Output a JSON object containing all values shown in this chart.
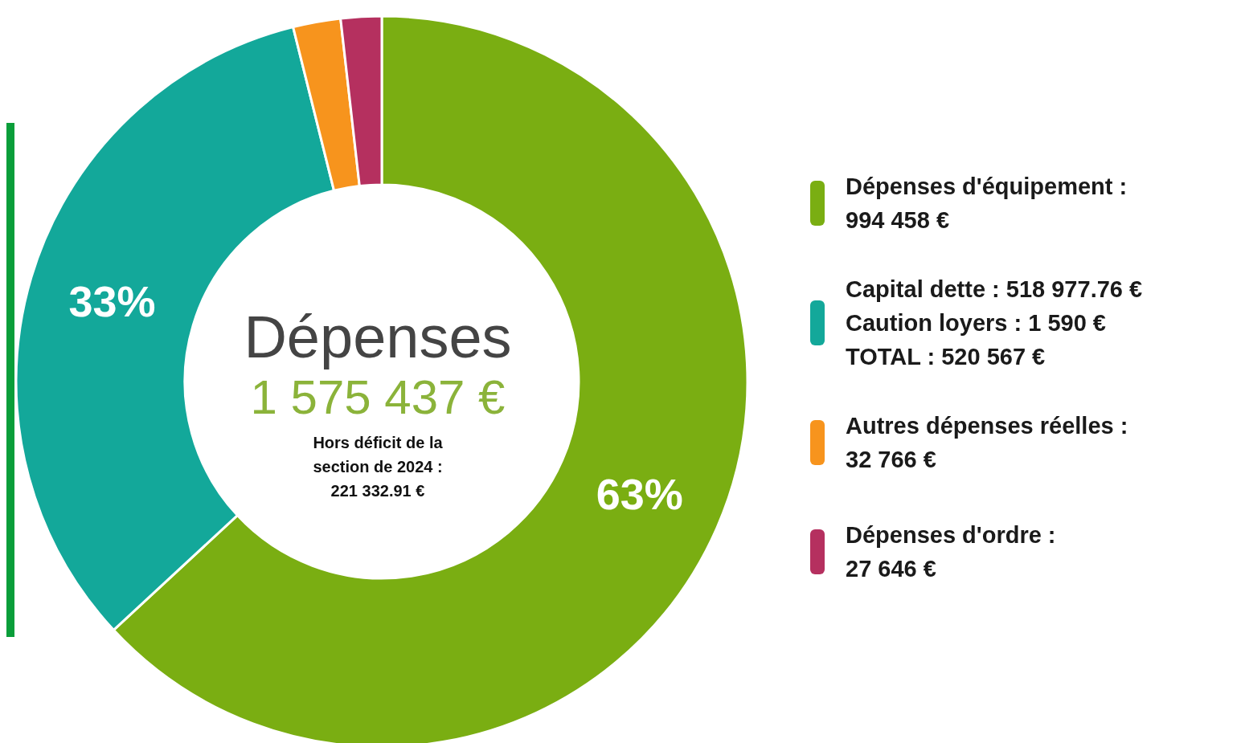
{
  "chart_data": {
    "type": "donut",
    "title": "Dépenses",
    "subtitle": "1 575 437 €",
    "annotations": [
      "Hors déficit de la\nsection de 2024 :\n221 332.91 €"
    ],
    "categories": [
      "Dépenses d'équipement :\n994 458 €",
      "Capital dette : 518 977.76 €\nCaution loyers : 1 590 €\nTOTAL : 520 567 €",
      "Autres dépenses réelles :\n32 766 €",
      "Dépenses d'ordre :\n27 646 €"
    ],
    "values": [
      63.1,
      33.0,
      2.1,
      1.8
    ],
    "colors": [
      "#7aae12",
      "#13a89a",
      "#f7941d",
      "#b5305f"
    ],
    "value_labels": [
      "63%",
      "33%",
      null,
      null
    ],
    "legend": "right"
  }
}
